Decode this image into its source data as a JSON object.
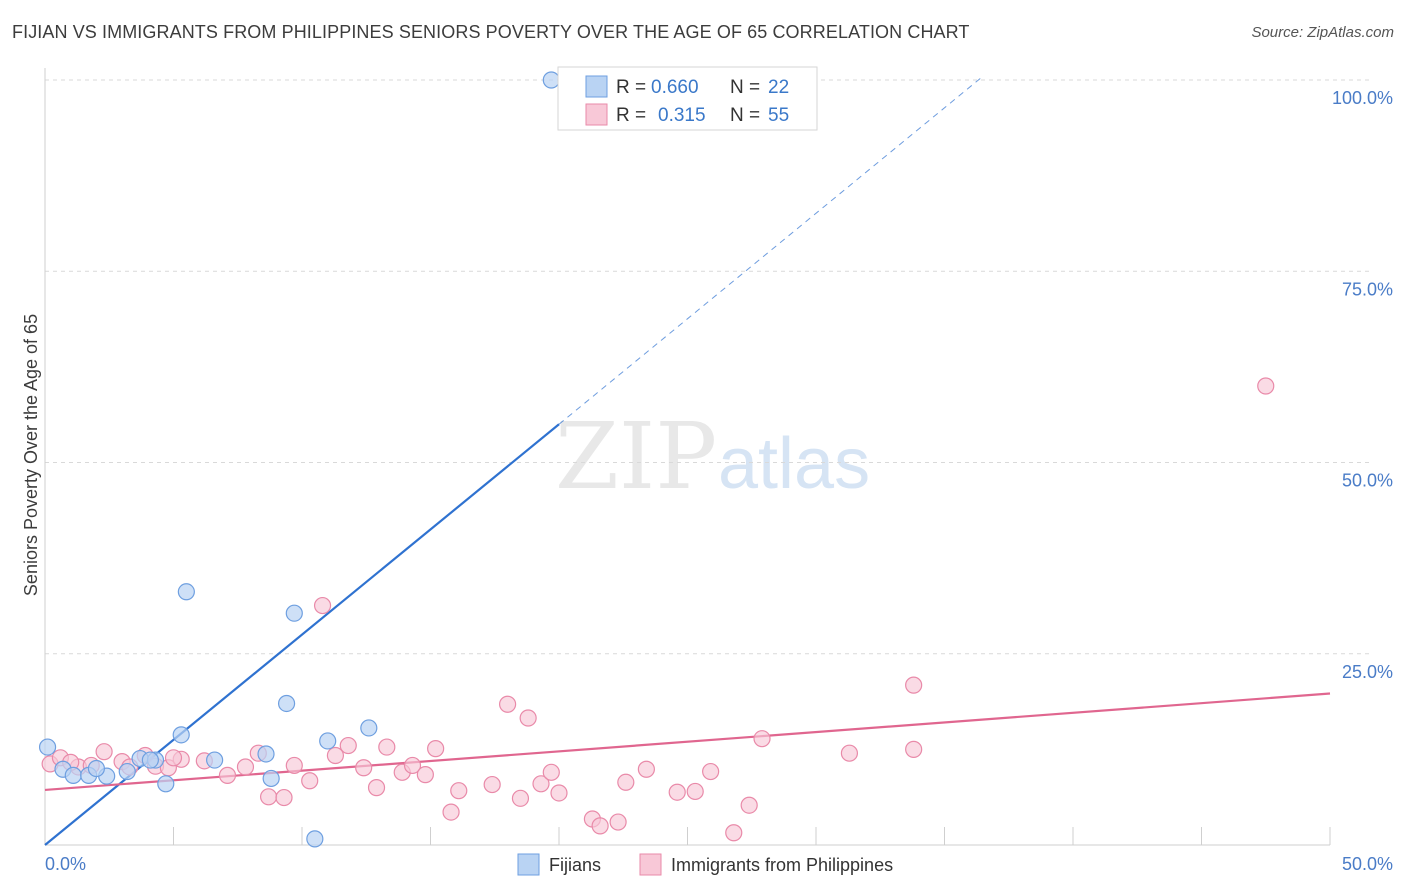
{
  "title": "FIJIAN VS IMMIGRANTS FROM PHILIPPINES SENIORS POVERTY OVER THE AGE OF 65 CORRELATION CHART",
  "source": "Source: ZipAtlas.com",
  "watermark": {
    "zip": "ZIP",
    "atlas": "atlas"
  },
  "colors": {
    "fijians_fill": "#b9d3f3",
    "fijians_stroke": "#6e9fe0",
    "fijians_line": "#2f72d0",
    "phil_fill": "#f8c8d7",
    "phil_stroke": "#e98aa9",
    "phil_line": "#e0668f",
    "grid": "#d9d9d9",
    "axis_text": "#4a7cc7"
  },
  "legend": {
    "rows": [
      {
        "r_label": "R =",
        "r_value": "0.660",
        "n_label": "N =",
        "n_value": "22"
      },
      {
        "r_label": "R =",
        "r_value": "0.315",
        "n_label": "N =",
        "n_value": "55"
      }
    ]
  },
  "chart_data": {
    "type": "scatter",
    "title": "FIJIAN VS IMMIGRANTS FROM PHILIPPINES SENIORS POVERTY OVER THE AGE OF 65 CORRELATION CHART",
    "xlabel": "",
    "ylabel": "Seniors Poverty Over the Age of 65",
    "xlim": [
      0,
      50
    ],
    "ylim": [
      0,
      100
    ],
    "x_tick_labels": [
      "0.0%",
      "50.0%"
    ],
    "y_ticks": [
      25,
      50,
      75,
      100
    ],
    "y_tick_labels": [
      "25.0%",
      "50.0%",
      "75.0%",
      "100.0%"
    ],
    "grid": true,
    "legend_position": "bottom",
    "series": [
      {
        "name": "Fijians",
        "r": 0.66,
        "n": 22,
        "trend": {
          "x0": 0,
          "y0": 0,
          "x1": 20,
          "y1": 55,
          "dashed_to_x": 36.5,
          "dashed_to_y": 100.5
        },
        "points": [
          [
            0.1,
            12.8
          ],
          [
            0.7,
            9.9
          ],
          [
            1.1,
            9.1
          ],
          [
            1.7,
            9.1
          ],
          [
            2.4,
            9.0
          ],
          [
            2.0,
            10.0
          ],
          [
            3.2,
            9.6
          ],
          [
            3.7,
            11.3
          ],
          [
            4.3,
            11.1
          ],
          [
            4.7,
            8.0
          ],
          [
            5.3,
            14.4
          ],
          [
            5.5,
            33.1
          ],
          [
            6.6,
            11.1
          ],
          [
            8.6,
            11.9
          ],
          [
            8.8,
            8.7
          ],
          [
            9.4,
            18.5
          ],
          [
            9.7,
            30.3
          ],
          [
            10.5,
            0.8
          ],
          [
            11.0,
            13.6
          ],
          [
            12.6,
            15.3
          ],
          [
            19.7,
            100.0
          ],
          [
            4.1,
            11.1
          ]
        ]
      },
      {
        "name": "Immigrants from Philippines",
        "r": 0.315,
        "n": 55,
        "trend": {
          "x0": 0,
          "y0": 7.2,
          "x1": 50,
          "y1": 19.8
        },
        "points": [
          [
            0.2,
            10.6
          ],
          [
            0.6,
            11.4
          ],
          [
            1.3,
            10.2
          ],
          [
            1.8,
            10.4
          ],
          [
            2.3,
            12.2
          ],
          [
            3.0,
            10.9
          ],
          [
            3.3,
            10.2
          ],
          [
            3.9,
            11.7
          ],
          [
            4.3,
            10.3
          ],
          [
            4.8,
            10.1
          ],
          [
            5.3,
            11.2
          ],
          [
            6.2,
            11.0
          ],
          [
            7.1,
            9.1
          ],
          [
            7.8,
            10.2
          ],
          [
            8.3,
            12.0
          ],
          [
            8.7,
            6.3
          ],
          [
            9.3,
            6.2
          ],
          [
            9.7,
            10.4
          ],
          [
            10.3,
            8.4
          ],
          [
            10.8,
            31.3
          ],
          [
            11.3,
            11.7
          ],
          [
            11.8,
            13.0
          ],
          [
            12.4,
            10.1
          ],
          [
            12.9,
            7.5
          ],
          [
            13.3,
            12.8
          ],
          [
            13.9,
            9.5
          ],
          [
            14.3,
            10.4
          ],
          [
            14.8,
            9.2
          ],
          [
            15.2,
            12.6
          ],
          [
            15.8,
            4.3
          ],
          [
            16.1,
            7.1
          ],
          [
            17.4,
            7.9
          ],
          [
            18.0,
            18.4
          ],
          [
            18.5,
            6.1
          ],
          [
            18.8,
            16.6
          ],
          [
            19.3,
            8.0
          ],
          [
            19.7,
            9.5
          ],
          [
            20.0,
            6.8
          ],
          [
            21.3,
            3.4
          ],
          [
            21.6,
            2.5
          ],
          [
            22.3,
            3.0
          ],
          [
            22.6,
            8.2
          ],
          [
            23.4,
            9.9
          ],
          [
            24.6,
            6.9
          ],
          [
            25.3,
            7.0
          ],
          [
            25.9,
            9.6
          ],
          [
            26.8,
            1.6
          ],
          [
            27.4,
            5.2
          ],
          [
            27.9,
            13.9
          ],
          [
            31.3,
            12.0
          ],
          [
            33.8,
            20.9
          ],
          [
            33.8,
            12.5
          ],
          [
            47.5,
            60.0
          ],
          [
            5.0,
            11.4
          ],
          [
            1.0,
            10.8
          ]
        ]
      }
    ]
  }
}
